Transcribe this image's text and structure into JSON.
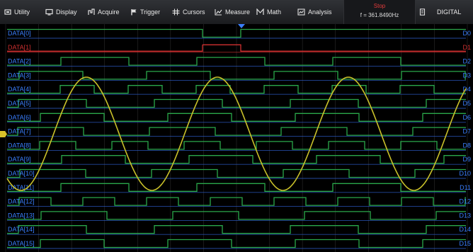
{
  "menu": {
    "utility": "Utility",
    "display": "Display",
    "acquire": "Acquire",
    "trigger": "Trigger",
    "cursors": "Cursors",
    "measure": "Measure",
    "math": "Math",
    "analysis": "Analysis",
    "digital": "DIGITAL"
  },
  "status": {
    "run_state": "Stop",
    "frequency": "f = 361.8490Hz"
  },
  "colors": {
    "analog_trace": "#c9c12a",
    "digital_high": "#2aa84a",
    "digital_low": "#2f5fd0",
    "selected_channel": "#d03030",
    "grid": "#2c2c2c",
    "marker": "#3a7fff"
  },
  "channels": [
    {
      "left": "DATA[0]",
      "right": "D0",
      "selected": false
    },
    {
      "left": "DATA[1]",
      "right": "D1",
      "selected": true
    },
    {
      "left": "DATA[2]",
      "right": "D2",
      "selected": false
    },
    {
      "left": "DATA[3]",
      "right": "D3",
      "selected": false
    },
    {
      "left": "DATA[4]",
      "right": "D4",
      "selected": false
    },
    {
      "left": "DATA[5]",
      "right": "D5",
      "selected": false
    },
    {
      "left": "DATA[6]",
      "right": "D6",
      "selected": false
    },
    {
      "left": "DATA[7]",
      "right": "D7",
      "selected": false
    },
    {
      "left": "DATA[8]",
      "right": "D8",
      "selected": false
    },
    {
      "left": "DATA[9]",
      "right": "D9",
      "selected": false
    },
    {
      "left": "DATA[10]",
      "right": "D10",
      "selected": false
    },
    {
      "left": "DATA[11]",
      "right": "D11",
      "selected": false
    },
    {
      "left": "DATA[12]",
      "right": "D12",
      "selected": false
    },
    {
      "left": "DATA[13]",
      "right": "D13",
      "selected": false
    },
    {
      "left": "DATA[14]",
      "right": "D14",
      "selected": false
    },
    {
      "left": "DATA[15]",
      "right": "D15",
      "selected": false
    }
  ]
}
